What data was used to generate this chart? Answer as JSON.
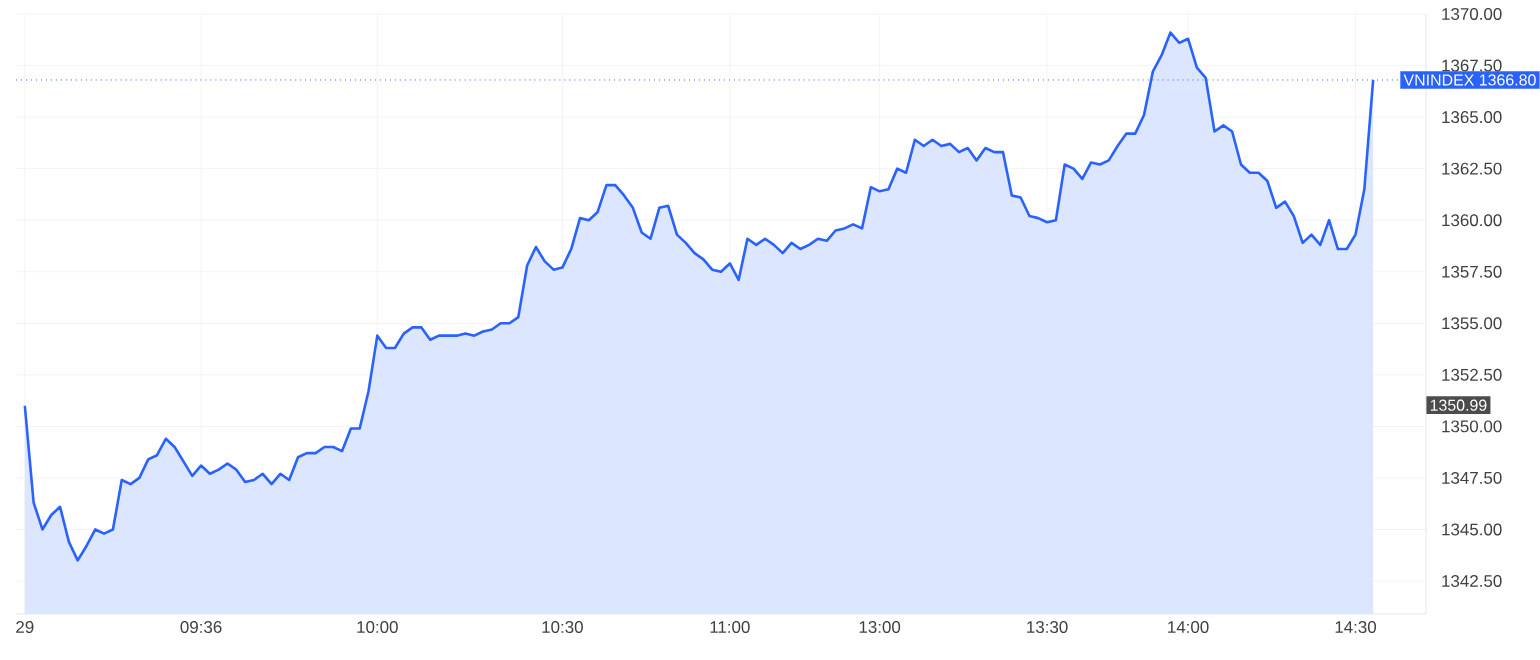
{
  "chart_data": {
    "type": "area",
    "color": "#2962ff",
    "categories": [
      "29",
      null,
      null,
      null,
      null,
      null,
      null,
      null,
      null,
      null,
      null,
      null,
      null,
      null,
      null,
      null,
      null,
      null,
      null,
      null,
      "09:36",
      null,
      null,
      null,
      null,
      null,
      null,
      null,
      null,
      null,
      null,
      null,
      null,
      null,
      null,
      null,
      null,
      null,
      null,
      null,
      "10:00",
      null,
      null,
      null,
      null,
      null,
      null,
      null,
      null,
      null,
      null,
      null,
      null,
      null,
      null,
      null,
      null,
      null,
      null,
      null,
      null,
      "10:30",
      null,
      null,
      null,
      null,
      null,
      null,
      null,
      null,
      null,
      null,
      null,
      null,
      null,
      null,
      null,
      null,
      null,
      null,
      "11:00",
      null,
      null,
      null,
      null,
      null,
      null,
      null,
      null,
      null,
      null,
      null,
      null,
      null,
      null,
      null,
      null,
      "13:00",
      null,
      null,
      null,
      null,
      null,
      null,
      null,
      null,
      null,
      null,
      null,
      null,
      null,
      null,
      null,
      null,
      null,
      null,
      "13:30",
      null,
      null,
      null,
      null,
      null,
      null,
      null,
      null,
      null,
      null,
      null,
      null,
      null,
      null,
      null,
      "14:00",
      null,
      null,
      null,
      null,
      null,
      null,
      null,
      null,
      null,
      null,
      null,
      null,
      null,
      null,
      null,
      null,
      null,
      null,
      "14:30",
      null,
      null
    ],
    "values": [
      1351.0,
      1346.3,
      1345.0,
      1345.7,
      1346.1,
      1344.4,
      1343.5,
      1344.2,
      1345.0,
      1344.8,
      1345.0,
      1347.4,
      1347.2,
      1347.5,
      1348.4,
      1348.6,
      1349.4,
      1349.0,
      1348.3,
      1347.6,
      1348.1,
      1347.7,
      1347.9,
      1348.2,
      1347.9,
      1347.3,
      1347.4,
      1347.7,
      1347.2,
      1347.7,
      1347.4,
      1348.5,
      1348.7,
      1348.7,
      1349.0,
      1349.0,
      1348.8,
      1349.9,
      1349.9,
      1351.7,
      1354.4,
      1353.8,
      1353.8,
      1354.5,
      1354.8,
      1354.8,
      1354.2,
      1354.4,
      1354.4,
      1354.4,
      1354.5,
      1354.4,
      1354.6,
      1354.7,
      1355.0,
      1355.0,
      1355.3,
      1357.8,
      1358.7,
      1358.0,
      1357.6,
      1357.7,
      1358.6,
      1360.1,
      1360.0,
      1360.4,
      1361.7,
      1361.7,
      1361.2,
      1360.6,
      1359.4,
      1359.1,
      1360.6,
      1360.7,
      1359.3,
      1358.9,
      1358.4,
      1358.1,
      1357.6,
      1357.5,
      1357.9,
      1357.1,
      1359.1,
      1358.8,
      1359.1,
      1358.8,
      1358.4,
      1358.9,
      1358.6,
      1358.8,
      1359.1,
      1359.0,
      1359.5,
      1359.6,
      1359.8,
      1359.6,
      1361.6,
      1361.4,
      1361.5,
      1362.5,
      1362.3,
      1363.9,
      1363.6,
      1363.9,
      1363.6,
      1363.7,
      1363.3,
      1363.5,
      1362.9,
      1363.5,
      1363.3,
      1363.3,
      1361.2,
      1361.1,
      1360.2,
      1360.1,
      1359.9,
      1360.0,
      1362.7,
      1362.5,
      1362.0,
      1362.8,
      1362.7,
      1362.9,
      1363.6,
      1364.2,
      1364.2,
      1365.1,
      1367.2,
      1368.0,
      1369.1,
      1368.6,
      1368.8,
      1367.4,
      1366.9,
      1364.3,
      1364.6,
      1364.3,
      1362.7,
      1362.3,
      1362.3,
      1361.9,
      1360.6,
      1360.9,
      1360.2,
      1358.9,
      1359.3,
      1358.8,
      1360.0,
      1358.6,
      1358.6,
      1359.3,
      1361.5,
      1366.8
    ],
    "ylim": [
      1340.9,
      1370
    ],
    "yticks": [
      {
        "value": 1342.5,
        "label": "1342.50"
      },
      {
        "value": 1345,
        "label": "1345.00"
      },
      {
        "value": 1347.5,
        "label": "1347.50"
      },
      {
        "value": 1350,
        "label": "1350.00"
      },
      {
        "value": 1352.5,
        "label": "1352.50"
      },
      {
        "value": 1355,
        "label": "1355.00"
      },
      {
        "value": 1357.5,
        "label": "1357.50"
      },
      {
        "value": 1360,
        "label": "1360.00"
      },
      {
        "value": 1362.5,
        "label": "1362.50"
      },
      {
        "value": 1365,
        "label": "1365.00"
      },
      {
        "value": 1367.5,
        "label": "1367.50"
      },
      {
        "value": 1370,
        "label": "1370.00"
      }
    ],
    "grid": true,
    "ref_lines": [
      {
        "axis": "y",
        "value": 1366.8,
        "label": "VNINDEX 1366.80",
        "color": "#2962ff",
        "line_style": "dotted"
      }
    ],
    "annotations": [
      "1350.99"
    ]
  }
}
